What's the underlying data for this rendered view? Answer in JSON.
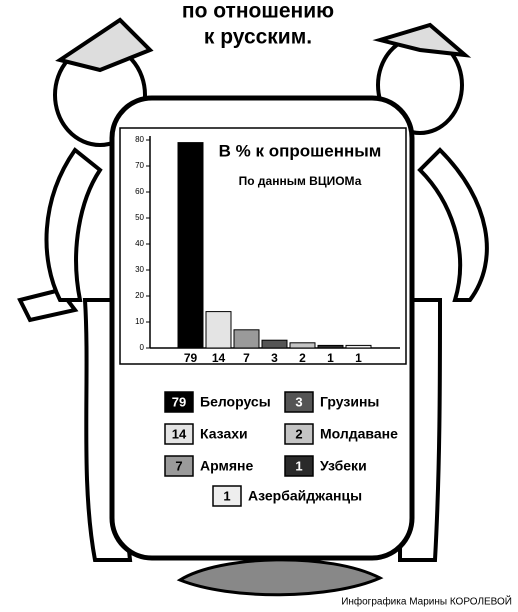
{
  "heading": [
    "по отношению",
    "к русским."
  ],
  "chart_data": {
    "type": "bar",
    "title": "В % к опрошенным",
    "subtitle": "По данным ВЦИОМа",
    "categories": [
      "Белорусы",
      "Казахи",
      "Армяне",
      "Грузины",
      "Молдаване",
      "Узбеки",
      "Азербайджанцы"
    ],
    "values": [
      79,
      14,
      7,
      3,
      2,
      1,
      1
    ],
    "colors": [
      "#000000",
      "#e4e4e4",
      "#9a9a9a",
      "#555555",
      "#c4c4c4",
      "#2a2a2a",
      "#eeeeee"
    ],
    "ylim": [
      0,
      80
    ],
    "yticks": [
      0,
      10,
      20,
      30,
      40,
      50,
      60,
      70,
      80
    ]
  },
  "credit": "Инфографика Марины КОРОЛЕВОЙ"
}
